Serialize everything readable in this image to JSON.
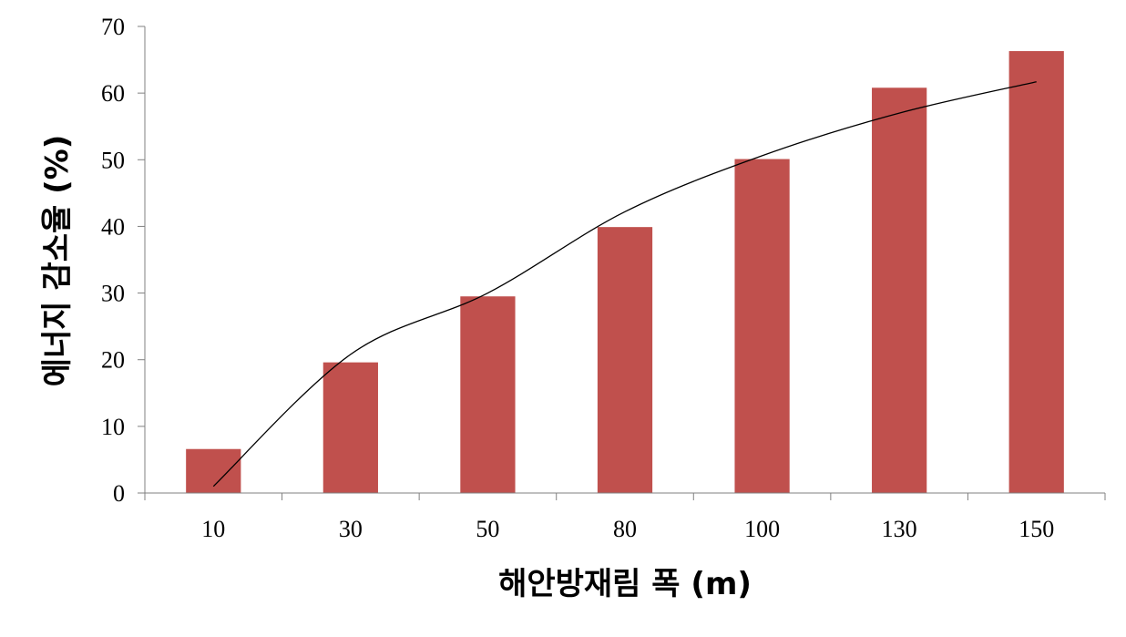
{
  "chart_data": {
    "type": "bar",
    "categories": [
      "10",
      "30",
      "50",
      "80",
      "100",
      "130",
      "150"
    ],
    "values": [
      6.6,
      19.6,
      29.5,
      39.9,
      50.1,
      60.8,
      66.3
    ],
    "trendline": {
      "type": "line",
      "values": [
        1.0,
        20.8,
        30.0,
        42.2,
        50.6,
        57.0,
        61.7
      ]
    },
    "title": "",
    "xlabel": "해안방재림 폭 (m)",
    "ylabel": "에너지 감소율 (%)",
    "ylim": [
      0,
      70
    ],
    "yticks": [
      "0",
      "10",
      "20",
      "30",
      "40",
      "50",
      "60",
      "70"
    ],
    "grid": false,
    "legend": "none",
    "colors": {
      "bar": "#c0504d",
      "trendline": "#000000",
      "axis": "#808080"
    }
  }
}
